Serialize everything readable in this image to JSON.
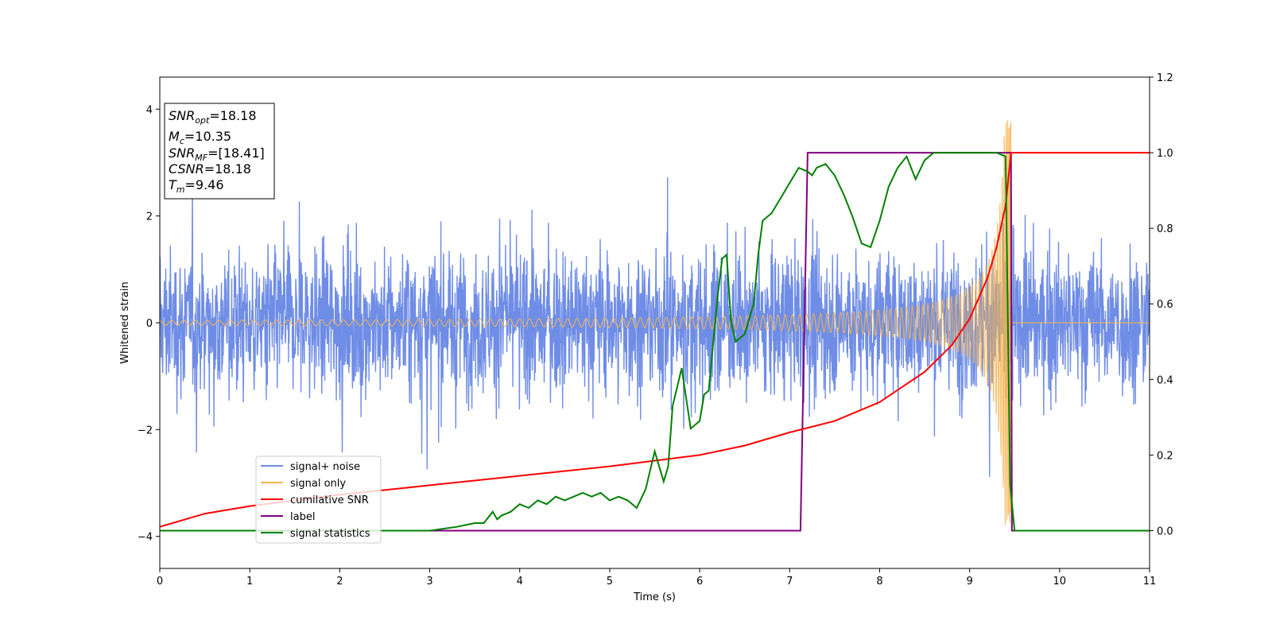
{
  "chart_data": {
    "type": "line",
    "xlabel": "Time (s)",
    "ylabel": "Whitened strain",
    "xlim": [
      0,
      11
    ],
    "ylim": [
      -4.6,
      4.6
    ],
    "y2lim": [
      -0.1,
      1.2
    ],
    "x_ticks": [
      "0",
      "1",
      "2",
      "3",
      "4",
      "5",
      "6",
      "7",
      "8",
      "9",
      "10",
      "11"
    ],
    "y_ticks": [
      "−4",
      "−2",
      "0",
      "2",
      "4"
    ],
    "y2_ticks": [
      "0.0",
      "0.2",
      "0.4",
      "0.6",
      "0.8",
      "1.0",
      "1.2"
    ],
    "grid": false,
    "legend_position": "lower-left",
    "annotation": {
      "snr_opt": {
        "base": "SNR",
        "sub": "opt",
        "value": "=18.18"
      },
      "mc": {
        "base": "M",
        "sub": "c",
        "value": "=10.35"
      },
      "snr_mf": {
        "base": "SNR",
        "sub": "MF",
        "value": "=[18.41]"
      },
      "csnr": {
        "base": "CSNR",
        "sub": "",
        "value": "=18.18"
      },
      "tm": {
        "base": "T",
        "sub": "m",
        "value": "=9.46"
      }
    },
    "series": [
      {
        "name": "signal+ noise",
        "axis": "left",
        "color": "#6f8de6",
        "description": "noise band approx. ±2 with spikes to ±4 over 0–11 s"
      },
      {
        "name": "signal only",
        "axis": "left",
        "color": "#f5b450",
        "merger_time": 9.46,
        "amplitude_start": 0.05,
        "amplitude_peak": 3.8
      },
      {
        "name": "cumilative SNR",
        "axis": "right",
        "color": "#ff0000",
        "x": [
          0,
          0.5,
          1,
          2,
          3,
          4,
          5,
          6,
          6.5,
          7,
          7.5,
          8,
          8.5,
          8.8,
          9.0,
          9.2,
          9.3,
          9.4,
          9.46,
          10,
          11
        ],
        "values": [
          0.01,
          0.045,
          0.065,
          0.095,
          0.12,
          0.145,
          0.17,
          0.2,
          0.225,
          0.26,
          0.29,
          0.34,
          0.42,
          0.49,
          0.56,
          0.67,
          0.75,
          0.86,
          1.0,
          1.0,
          1.0
        ]
      },
      {
        "name": "label",
        "axis": "right",
        "color": "#800080",
        "x": [
          0,
          7.12,
          7.2,
          9.46,
          9.47,
          11
        ],
        "values": [
          0,
          0,
          1,
          1,
          0,
          0
        ]
      },
      {
        "name": "signal statistics",
        "axis": "right",
        "color": "#008000",
        "x": [
          0,
          3.0,
          3.3,
          3.5,
          3.6,
          3.7,
          3.75,
          3.8,
          3.9,
          4.0,
          4.1,
          4.2,
          4.3,
          4.4,
          4.5,
          4.6,
          4.7,
          4.8,
          4.9,
          5.0,
          5.1,
          5.2,
          5.3,
          5.4,
          5.5,
          5.6,
          5.65,
          5.7,
          5.8,
          5.9,
          6.0,
          6.05,
          6.1,
          6.2,
          6.25,
          6.3,
          6.35,
          6.4,
          6.5,
          6.6,
          6.65,
          6.7,
          6.8,
          6.9,
          7.0,
          7.1,
          7.2,
          7.25,
          7.3,
          7.4,
          7.5,
          7.6,
          7.7,
          7.8,
          7.9,
          8.0,
          8.1,
          8.2,
          8.3,
          8.4,
          8.5,
          8.6,
          8.8,
          9.0,
          9.2,
          9.3,
          9.4,
          9.45,
          9.5,
          11
        ],
        "values": [
          0,
          0.0,
          0.01,
          0.02,
          0.02,
          0.05,
          0.03,
          0.04,
          0.05,
          0.07,
          0.06,
          0.08,
          0.07,
          0.09,
          0.08,
          0.09,
          0.1,
          0.09,
          0.1,
          0.08,
          0.09,
          0.08,
          0.06,
          0.11,
          0.21,
          0.13,
          0.17,
          0.33,
          0.43,
          0.27,
          0.29,
          0.36,
          0.37,
          0.62,
          0.72,
          0.73,
          0.55,
          0.5,
          0.52,
          0.6,
          0.73,
          0.82,
          0.84,
          0.88,
          0.92,
          0.96,
          0.95,
          0.94,
          0.96,
          0.97,
          0.94,
          0.89,
          0.83,
          0.76,
          0.75,
          0.82,
          0.91,
          0.96,
          0.99,
          0.93,
          0.98,
          1.0,
          1.0,
          1.0,
          1.0,
          1.0,
          0.99,
          0.12,
          0.0,
          0.0
        ]
      }
    ]
  }
}
